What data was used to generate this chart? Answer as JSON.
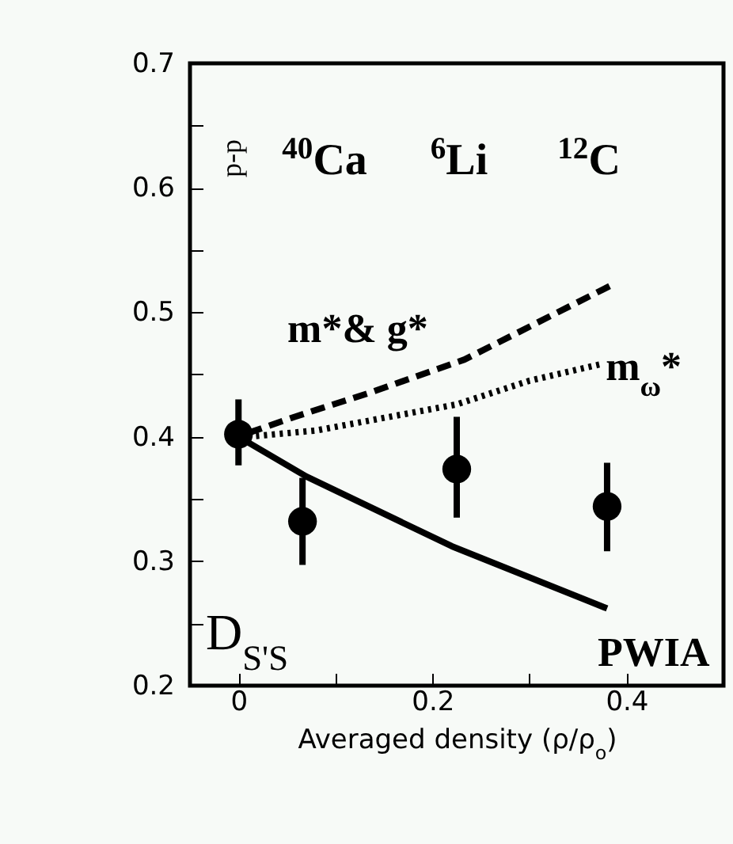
{
  "chart_data": {
    "type": "line",
    "xlabel": "Averaged density (ρ/ρ$_{o}$)",
    "xlim": [
      -0.05,
      0.5
    ],
    "xticks": [
      0,
      {
        "value": 0.1,
        "label": null
      },
      0.2,
      {
        "value": 0.3,
        "label": null
      },
      0.4
    ],
    "ylim": [
      0.2,
      0.7
    ],
    "yticks": [
      0.2,
      {
        "value": 0.25,
        "label": null
      },
      0.3,
      {
        "value": 0.35,
        "label": null
      },
      0.4,
      {
        "value": 0.45,
        "label": null
      },
      0.5,
      {
        "value": 0.55,
        "label": null
      },
      0.6,
      {
        "value": 0.65,
        "label": null
      },
      0.7
    ],
    "grid": false,
    "series": [
      {
        "name": "m*& g*",
        "line_style": "dashed",
        "color": "#000000",
        "x": [
          0.01,
          0.058,
          0.134,
          0.233,
          0.385
        ],
        "values": [
          0.403,
          0.416,
          0.435,
          0.462,
          0.522
        ]
      },
      {
        "name": "m$_{ω}$*",
        "line_style": "dotted",
        "color": "#000000",
        "x": [
          0.01,
          0.08,
          0.225,
          0.3,
          0.372
        ],
        "values": [
          0.4,
          0.405,
          0.426,
          0.445,
          0.458
        ]
      },
      {
        "name": "PWIA",
        "line_style": "solid",
        "color": "#000000",
        "x": [
          0,
          0.07,
          0.22,
          0.38
        ],
        "values": [
          0.4,
          0.368,
          0.312,
          0.262
        ]
      },
      {
        "type": "scatter",
        "marker": "circle",
        "color": "#000000",
        "x": [
          0,
          0.066,
          0.225,
          0.38
        ],
        "values": [
          0.402,
          0.332,
          0.374,
          0.344
        ],
        "errors": [
          [
            0.377,
            0.43
          ],
          [
            0.297,
            0.367
          ],
          [
            0.335,
            0.416
          ],
          [
            0.308,
            0.379
          ]
        ]
      }
    ],
    "annotations": [
      "p-p",
      "$^{40}$Ca",
      "$^{6}$Li",
      "$^{12}$C",
      "D$_{S'S}$"
    ]
  }
}
